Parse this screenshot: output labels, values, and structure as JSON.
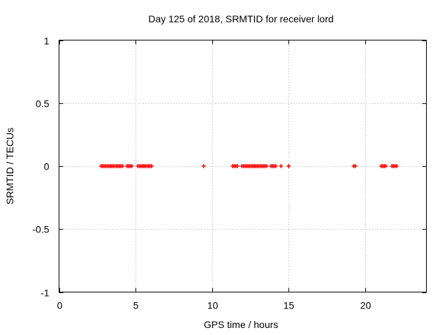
{
  "chart_data": {
    "type": "scatter",
    "title": "Day 125 of 2018, SRMTID for receiver lord",
    "xlabel": "GPS time / hours",
    "ylabel": "SRMTID / TECUs",
    "xlim": [
      0,
      24
    ],
    "ylim": [
      -1,
      1
    ],
    "xticks": [
      0,
      5,
      10,
      15,
      20
    ],
    "xtick_labels": [
      "0",
      "5",
      "10",
      "15",
      "20"
    ],
    "yticks": [
      -1,
      -0.5,
      0,
      0.5,
      1
    ],
    "ytick_labels": [
      "-1",
      "-0.5",
      "0",
      "0.5",
      "1"
    ],
    "grid": true,
    "marker": "plus",
    "series_color": "#ff0000",
    "series": [
      {
        "name": "",
        "x": [
          2.75,
          2.85,
          2.95,
          3.05,
          3.15,
          3.25,
          3.35,
          3.45,
          3.55,
          3.65,
          3.75,
          3.85,
          3.95,
          4.05,
          4.15,
          4.45,
          4.55,
          4.65,
          4.75,
          5.15,
          5.25,
          5.35,
          5.45,
          5.55,
          5.65,
          5.75,
          5.85,
          5.95,
          6.05,
          9.45,
          11.35,
          11.45,
          11.55,
          11.65,
          11.95,
          12.05,
          12.15,
          12.25,
          12.35,
          12.45,
          12.55,
          12.65,
          12.75,
          12.85,
          12.95,
          13.05,
          13.15,
          13.25,
          13.35,
          13.45,
          13.55,
          13.85,
          13.95,
          14.05,
          14.15,
          14.5,
          15.0,
          19.25,
          19.35,
          21.05,
          21.15,
          21.25,
          21.35,
          21.75,
          21.85,
          21.95,
          22.05
        ],
        "y": [
          0,
          0,
          0,
          0,
          0,
          0,
          0,
          0,
          0,
          0,
          0,
          0,
          0,
          0,
          0,
          0,
          0,
          0,
          0,
          0,
          0,
          0,
          0,
          0,
          0,
          0,
          0,
          0,
          0,
          0,
          0,
          0,
          0,
          0,
          0,
          0,
          0,
          0,
          0,
          0,
          0,
          0,
          0,
          0,
          0,
          0,
          0,
          0,
          0,
          0,
          0,
          0,
          0,
          0,
          0,
          0,
          0,
          0,
          0,
          0,
          0,
          0,
          0,
          0,
          0,
          0,
          0
        ]
      }
    ]
  }
}
